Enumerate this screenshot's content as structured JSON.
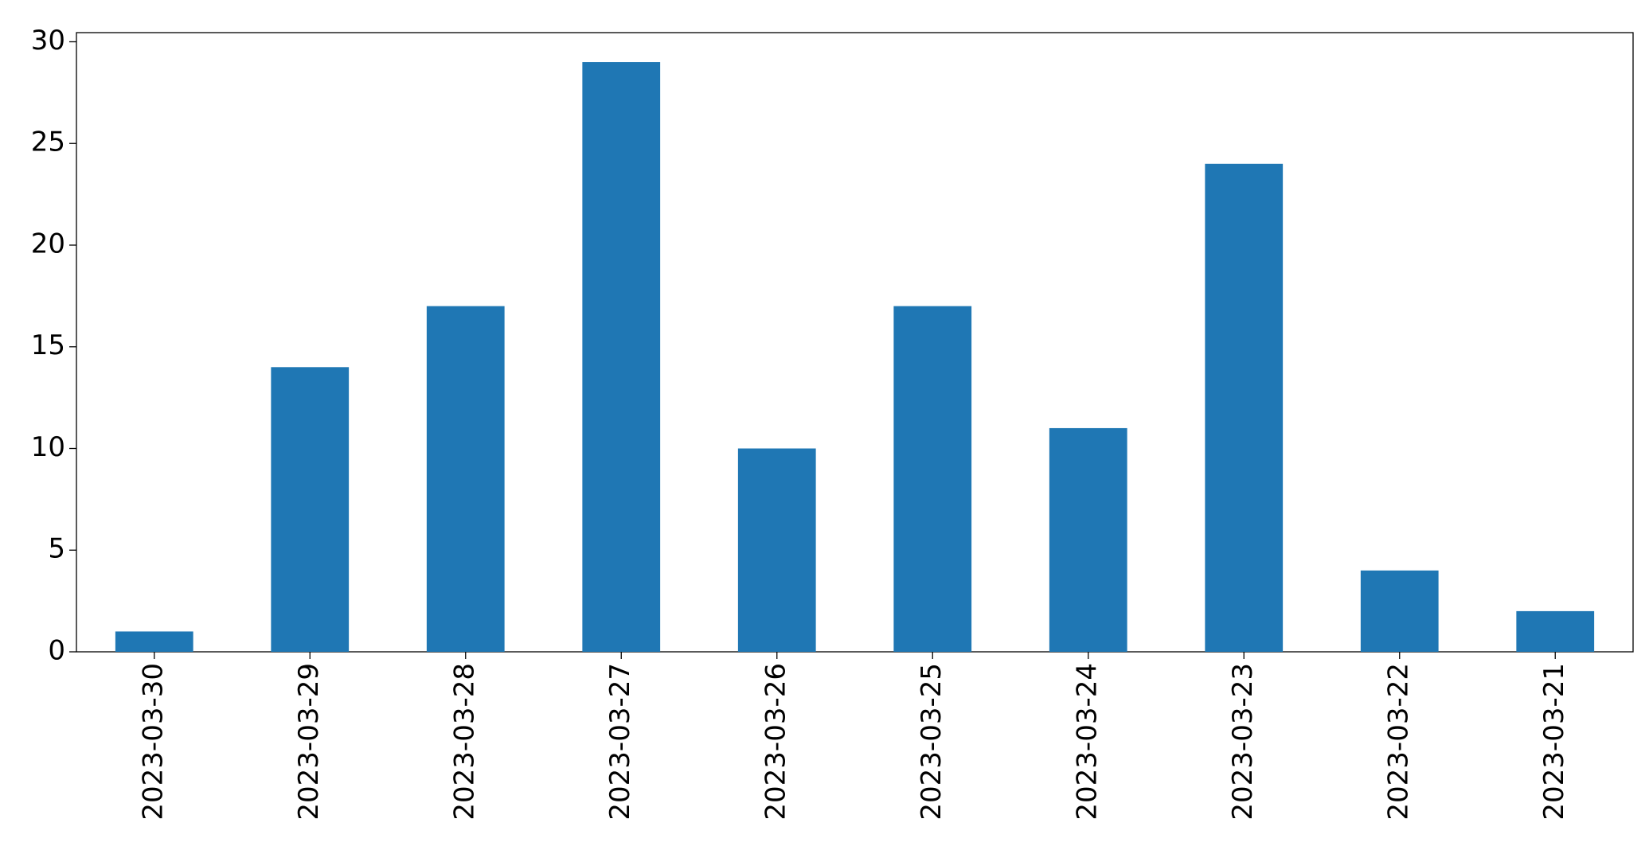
{
  "chart_data": {
    "type": "bar",
    "categories": [
      "2023-03-30",
      "2023-03-29",
      "2023-03-28",
      "2023-03-27",
      "2023-03-26",
      "2023-03-25",
      "2023-03-24",
      "2023-03-23",
      "2023-03-22",
      "2023-03-21"
    ],
    "values": [
      1,
      14,
      17,
      29,
      10,
      17,
      11,
      24,
      4,
      2
    ],
    "color": "#1f77b4",
    "ylim": [
      0,
      30.45
    ],
    "yticks": [
      0,
      5,
      10,
      15,
      20,
      25,
      30
    ],
    "grid": false
  }
}
